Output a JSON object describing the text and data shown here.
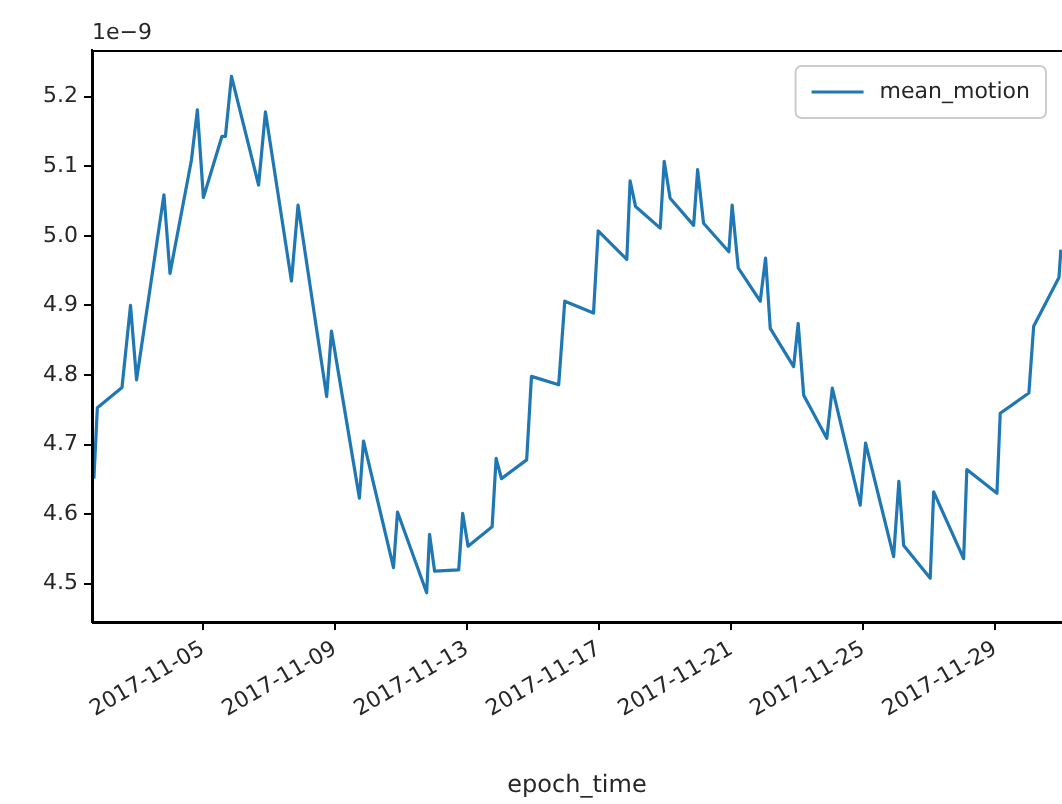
{
  "chart_data": {
    "type": "line",
    "xlabel": "epoch_time",
    "annotations": [
      "1e−9"
    ],
    "legend": "top right",
    "grid": false,
    "xlim": [
      "2017-11-01T15:18",
      "2017-12-01T00:30"
    ],
    "xticks": [
      "2017-11-05",
      "2017-11-09",
      "2017-11-13",
      "2017-11-17",
      "2017-11-21",
      "2017-11-25",
      "2017-11-29"
    ],
    "ylim": [
      4.445,
      5.267
    ],
    "yticks": [
      4.5,
      4.6,
      4.7,
      4.8,
      4.9,
      {
        "value": 5.0,
        "label": "5.0"
      },
      5.1,
      5.2
    ],
    "x": [
      "2017-11-01T16:40",
      "2017-11-01T19:12",
      "2017-11-02T13:06",
      "2017-11-02T19:18",
      "2017-11-02T23:42",
      "2017-11-03T19:36",
      "2017-11-04T00:00",
      "2017-11-04T15:36",
      "2017-11-04T19:54",
      "2017-11-05T00:18",
      "2017-11-05T13:48",
      "2017-11-05T16:18",
      "2017-11-05T20:42",
      "2017-11-06T16:24",
      "2017-11-06T21:24",
      "2017-11-07T16:18",
      "2017-11-07T21:06",
      "2017-11-08T17:54",
      "2017-11-08T21:24",
      "2017-11-09T17:42",
      "2017-11-09T20:42",
      "2017-11-10T18:30",
      "2017-11-10T21:24",
      "2017-11-11T18:36",
      "2017-11-11T20:42",
      "2017-11-12T00:24",
      "2017-11-12T17:54",
      "2017-11-12T20:48",
      "2017-11-13T00:42",
      "2017-11-13T18:12",
      "2017-11-13T21:06",
      "2017-11-14T01:00",
      "2017-11-14T19:18",
      "2017-11-14T22:48",
      "2017-11-15T18:36",
      "2017-11-15T23:00",
      "2017-11-16T19:54",
      "2017-11-16T23:18",
      "2017-11-17T20:06",
      "2017-11-17T22:30",
      "2017-11-18T02:30",
      "2017-11-18T20:24",
      "2017-11-18T23:18",
      "2017-11-19T03:36",
      "2017-11-19T20:42",
      "2017-11-19T23:36",
      "2017-11-20T03:54",
      "2017-11-20T22:18",
      "2017-11-21T00:42",
      "2017-11-21T05:06",
      "2017-11-21T21:06",
      "2017-11-22T01:00",
      "2017-11-22T04:24",
      "2017-11-22T21:24",
      "2017-11-23T00:42",
      "2017-11-23T04:42",
      "2017-11-23T21:30",
      "2017-11-24T01:30",
      "2017-11-24T21:48",
      "2017-11-25T01:42",
      "2017-11-25T22:06",
      "2017-11-26T01:54",
      "2017-11-26T05:24",
      "2017-11-27T00:42",
      "2017-11-27T03:12",
      "2017-11-28T01:00",
      "2017-11-28T03:18",
      "2017-11-29T01:12",
      "2017-11-29T03:36",
      "2017-11-30T00:24",
      "2017-11-30T03:54",
      "2017-11-30T22:18",
      "2017-11-30T23:40"
    ],
    "series": [
      {
        "name": "mean_motion",
        "color": "#1f77b4",
        "values": [
          4.651,
          4.753,
          4.782,
          4.9,
          4.793,
          5.059,
          4.946,
          5.109,
          5.181,
          5.055,
          5.143,
          5.143,
          5.229,
          5.073,
          5.178,
          4.935,
          5.044,
          4.769,
          4.863,
          4.623,
          4.705,
          4.523,
          4.603,
          4.487,
          4.571,
          4.518,
          4.52,
          4.601,
          4.554,
          4.582,
          4.68,
          4.651,
          4.678,
          4.798,
          4.786,
          4.906,
          4.889,
          5.007,
          4.966,
          5.079,
          5.042,
          5.011,
          5.107,
          5.054,
          5.015,
          5.095,
          5.018,
          4.977,
          5.044,
          4.954,
          4.906,
          4.968,
          4.867,
          4.812,
          4.874,
          4.771,
          4.709,
          4.781,
          4.613,
          4.702,
          4.539,
          4.647,
          4.555,
          4.508,
          4.632,
          4.536,
          4.664,
          4.63,
          4.745,
          4.774,
          4.87,
          4.94,
          4.98
        ]
      }
    ]
  }
}
